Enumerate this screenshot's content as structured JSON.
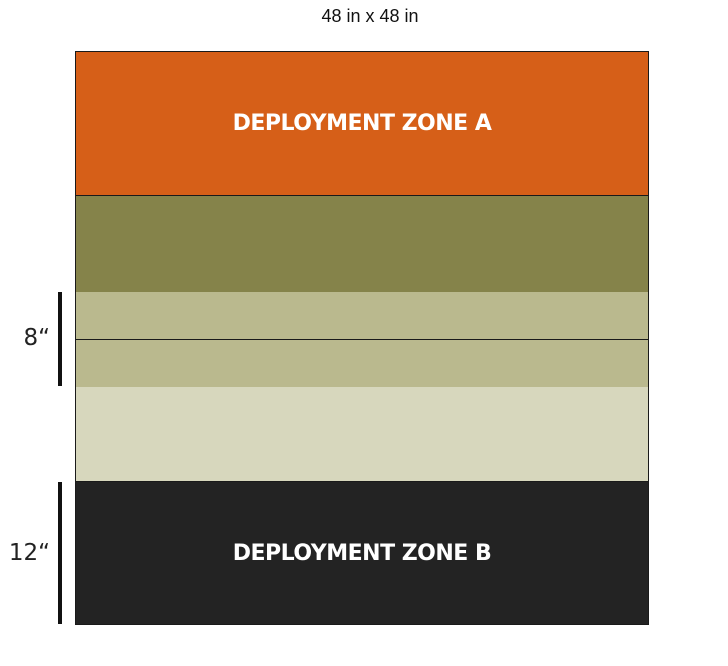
{
  "header": {
    "title": "48 in x 48 in"
  },
  "zones": {
    "zone_a_label": "DEPLOYMENT ZONE A",
    "zone_b_label": "DEPLOYMENT ZONE B"
  },
  "measurements": {
    "upper_label": "8“",
    "lower_label": "12“"
  },
  "colors": {
    "zone_a": "#D65F18",
    "olive": "#85834A",
    "khaki": "#BAB98E",
    "pale": "#D7D7BD",
    "zone_b": "#232323"
  }
}
